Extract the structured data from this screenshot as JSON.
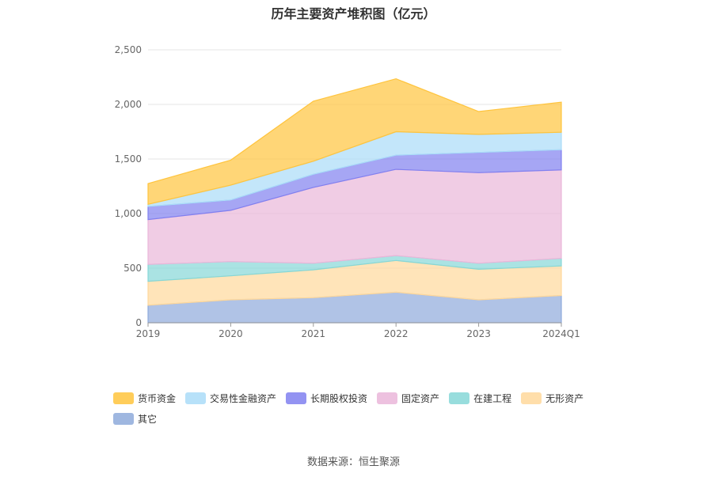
{
  "chart_data": {
    "type": "area",
    "stacked": true,
    "title": "历年主要资产堆积图（亿元）",
    "categories": [
      "2019",
      "2020",
      "2021",
      "2022",
      "2023",
      "2024Q1"
    ],
    "ylim": [
      0,
      2500
    ],
    "yticks": [
      "0",
      "500",
      "1,000",
      "1,500",
      "2,000",
      "2,500"
    ],
    "grid": true,
    "legend_position": "bottom",
    "series": [
      {
        "name": "其它",
        "color": "#8eaadb",
        "values": [
          160,
          210,
          230,
          280,
          210,
          250
        ]
      },
      {
        "name": "无形资产",
        "color": "#ffd89b",
        "values": [
          220,
          220,
          255,
          290,
          280,
          270
        ]
      },
      {
        "name": "在建工程",
        "color": "#86d7d7",
        "values": [
          155,
          130,
          60,
          45,
          55,
          70
        ]
      },
      {
        "name": "固定资产",
        "color": "#eab6d9",
        "values": [
          410,
          470,
          695,
          790,
          830,
          810
        ]
      },
      {
        "name": "长期股权投资",
        "color": "#8080f0",
        "values": [
          120,
          95,
          120,
          130,
          185,
          185
        ]
      },
      {
        "name": "交易性金融资产",
        "color": "#aadcf8",
        "values": [
          20,
          135,
          120,
          215,
          165,
          160
        ]
      },
      {
        "name": "货币资金",
        "color": "#ffc43d",
        "values": [
          190,
          230,
          550,
          485,
          210,
          275
        ]
      }
    ],
    "legend_order": [
      "货币资金",
      "交易性金融资产",
      "长期股权投资",
      "固定资产",
      "在建工程",
      "无形资产",
      "其它"
    ]
  },
  "source": "数据来源：恒生聚源"
}
